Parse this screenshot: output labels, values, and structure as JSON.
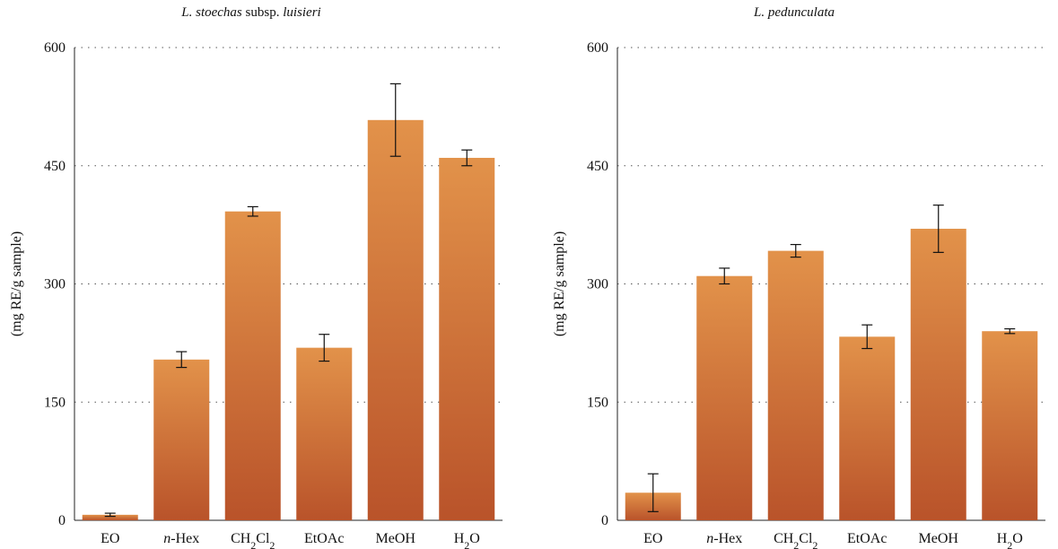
{
  "colors": {
    "bar_top": "#e2924a",
    "bar_bottom": "#b9532a",
    "grid": "#555555",
    "axis": "#222222",
    "error_bar": "#111111"
  },
  "chart_data": [
    {
      "type": "bar",
      "title": "L. stoechas subsp. luisieri",
      "title_parts": {
        "italic_1": "L. stoechas",
        "normal": " subsp. ",
        "italic_2": "luisieri"
      },
      "ylabel": "(mg RE/g sample)",
      "xlabel": "",
      "ylim": [
        0,
        600
      ],
      "yticks": [
        0,
        150,
        300,
        450,
        600
      ],
      "grid": "horizontal dotted",
      "categories": [
        "EO",
        "n-Hex",
        "CH2Cl2",
        "EtOAc",
        "MeOH",
        "H2O"
      ],
      "values": [
        7,
        204,
        392,
        219,
        508,
        460
      ],
      "errors": [
        2,
        10,
        6,
        17,
        46,
        10
      ]
    },
    {
      "type": "bar",
      "title": "L. pedunculata",
      "ylabel": "(mg RE/g sample)",
      "xlabel": "",
      "ylim": [
        0,
        600
      ],
      "yticks": [
        0,
        150,
        300,
        450,
        600
      ],
      "grid": "horizontal dotted",
      "categories": [
        "EO",
        "n-Hex",
        "CH2Cl2",
        "EtOAc",
        "MeOH",
        "H2O"
      ],
      "values": [
        35,
        310,
        342,
        233,
        370,
        240
      ],
      "errors": [
        24,
        10,
        8,
        15,
        30,
        3
      ]
    }
  ]
}
